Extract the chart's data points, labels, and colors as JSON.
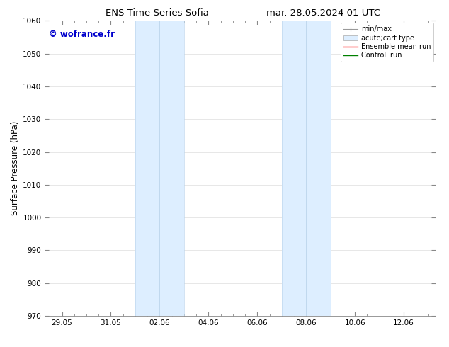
{
  "title_left": "ENS Time Series Sofia",
  "title_right": "mar. 28.05.2024 01 UTC",
  "ylabel": "Surface Pressure (hPa)",
  "ylim": [
    970,
    1060
  ],
  "yticks": [
    970,
    980,
    990,
    1000,
    1010,
    1020,
    1030,
    1040,
    1050,
    1060
  ],
  "xtick_labels": [
    "29.05",
    "31.05",
    "02.06",
    "04.06",
    "06.06",
    "08.06",
    "10.06",
    "12.06"
  ],
  "xtick_positions": [
    0,
    2,
    4,
    6,
    8,
    10,
    12,
    14
  ],
  "xmin": -0.7,
  "xmax": 15.3,
  "shaded_bands": [
    {
      "x_start": 3.0,
      "x_end": 5.0,
      "x_mid": 4.0
    },
    {
      "x_start": 9.0,
      "x_end": 11.0,
      "x_mid": 10.0
    }
  ],
  "shaded_color": "#ddeeff",
  "shaded_edge_color": "#c0d8ee",
  "background_color": "#ffffff",
  "watermark_text": "© wofrance.fr",
  "watermark_color": "#0000cc",
  "watermark_fontsize": 8.5,
  "legend_entries": [
    {
      "label": "min/max",
      "color": "#aaaaaa",
      "lw": 1.0
    },
    {
      "label": "acute;cart type",
      "facecolor": "#ddeeff",
      "edgecolor": "#aaaaaa",
      "lw": 0.5
    },
    {
      "label": "Ensemble mean run",
      "color": "#ff0000",
      "lw": 1.0
    },
    {
      "label": "Controll run",
      "color": "#008000",
      "lw": 1.0
    }
  ],
  "grid_color": "#dddddd",
  "tick_label_fontsize": 7.5,
  "axis_label_fontsize": 8.5,
  "title_fontsize": 9.5,
  "legend_fontsize": 7.0,
  "spine_color": "#888888"
}
